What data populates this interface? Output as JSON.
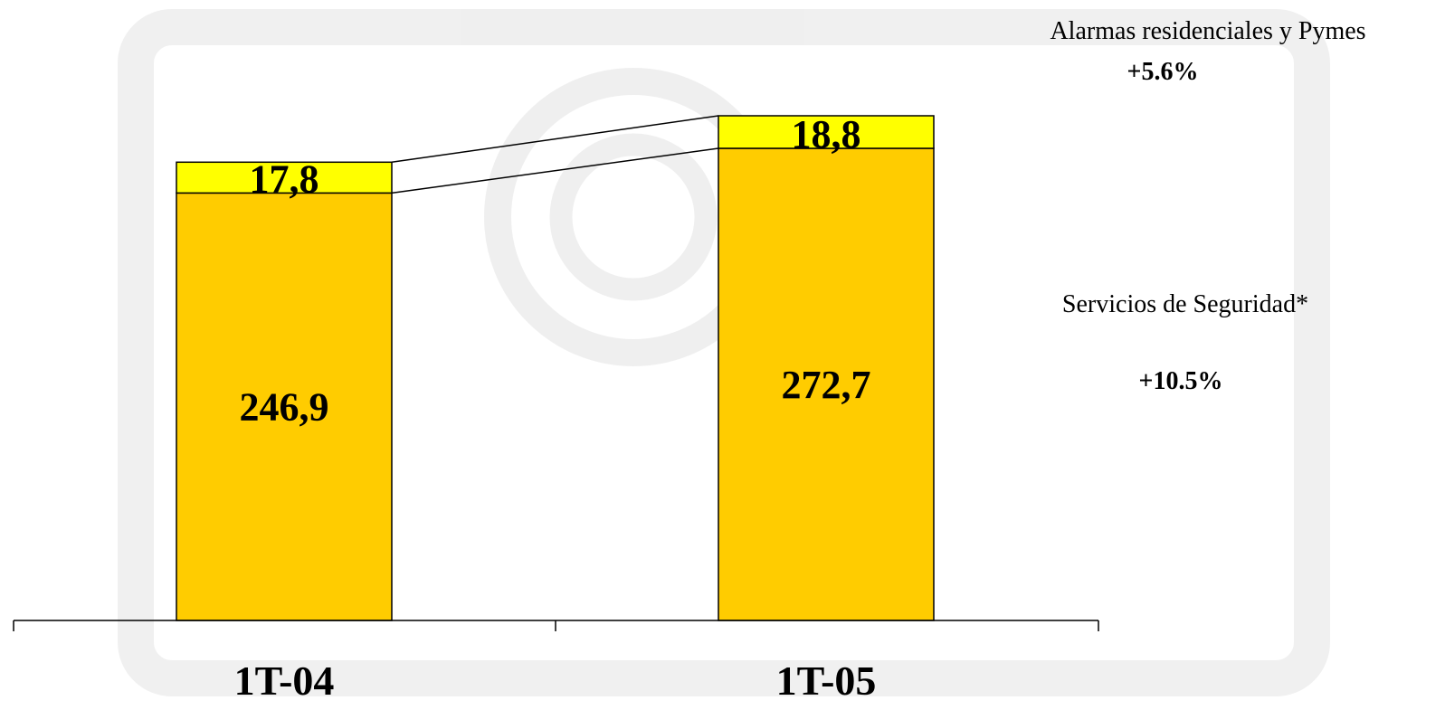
{
  "chart_data": {
    "type": "bar",
    "stacked": true,
    "categories": [
      "1T-04",
      "1T-05"
    ],
    "series": [
      {
        "name": "Servicios de Seguridad*",
        "values": [
          246.9,
          272.7
        ],
        "labels": [
          "246,9",
          "272,7"
        ],
        "color": "#FFCC00"
      },
      {
        "name": "Alarmas residenciales y Pymes",
        "values": [
          17.8,
          18.8
        ],
        "labels": [
          "17,8",
          "18,8"
        ],
        "color": "#FFFF00"
      }
    ],
    "annotations": [
      {
        "series": "Servicios de Seguridad*",
        "change": "+10.5%"
      },
      {
        "series": "Alarmas residenciales y Pymes",
        "change": "+5.6%"
      }
    ],
    "grid": false,
    "title": "",
    "xlabel": "",
    "ylabel": ""
  }
}
